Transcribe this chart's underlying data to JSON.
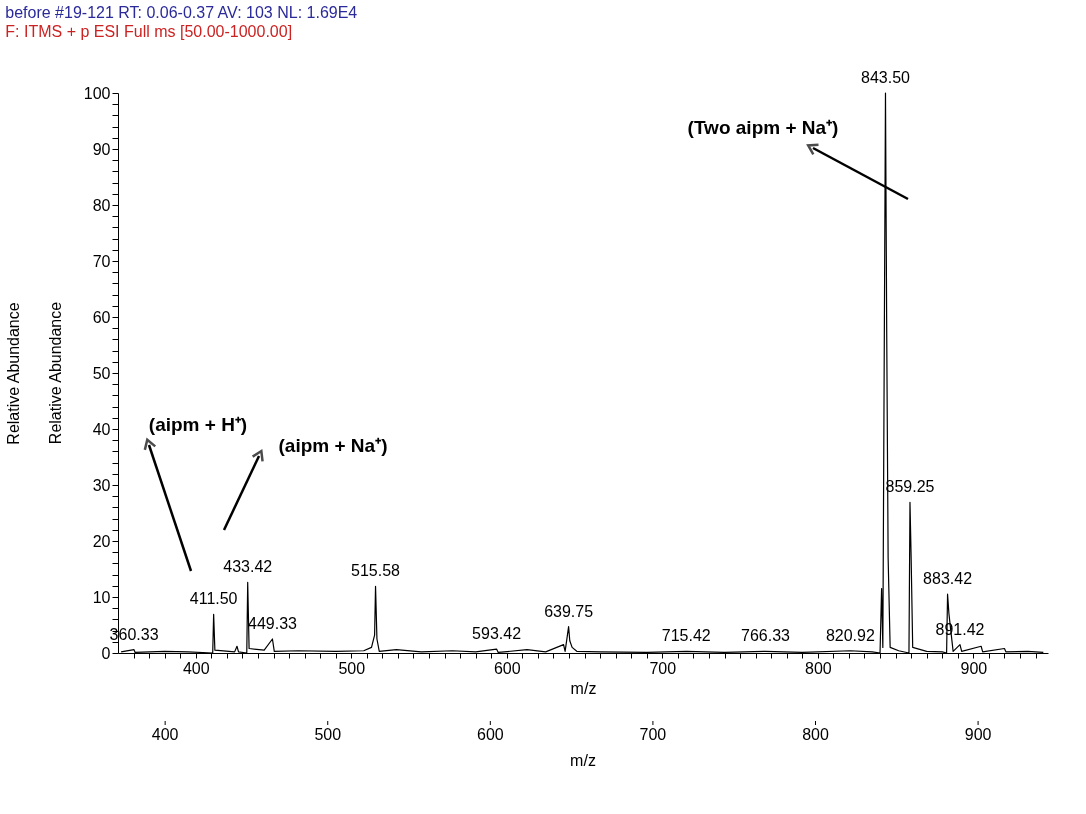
{
  "chart_data": {
    "type": "line",
    "title": "before #19-121   RT: 0.06-0.37   AV: 103   NL: 1.69E4",
    "subtitle": "F: ITMS + p ESI Full ms [50.00-1000.00]",
    "xlabel": "m/z",
    "x2label": "m/z",
    "ylabel": "Relative Abundance",
    "y2label": "Relative Abundance",
    "series": [
      {
        "color": "#000000",
        "x": [
          352,
          360.3,
          361,
          380,
          395,
          410.9,
          411.5,
          412.3,
          425,
          426.5,
          427.5,
          432.8,
          433.4,
          434.3,
          444,
          449.3,
          450.5,
          466,
          490,
          508,
          513,
          515,
          515.6,
          516.5,
          518,
          529,
          545,
          565,
          580,
          593.4,
          594.5,
          613,
          625,
          636.5,
          637.5,
          639.75,
          640.5,
          642,
          645,
          660,
          690,
          715.4,
          740,
          766.3,
          790,
          820.9,
          835,
          840,
          841,
          841.8,
          843.5,
          844.3,
          845.2,
          846.5,
          852,
          858.6,
          859.25,
          860,
          861,
          870,
          880,
          882.8,
          883.42,
          884.3,
          885.5,
          887,
          891.4,
          892.5,
          905,
          906,
          920,
          921,
          935,
          945
        ],
        "values": [
          0.2,
          0.6,
          0.1,
          0.3,
          0.2,
          0,
          6.9,
          0.5,
          0.2,
          1.2,
          0.2,
          0,
          12.6,
          0.8,
          0.5,
          2.5,
          0.3,
          0.4,
          0.3,
          0.4,
          1,
          3.2,
          11.9,
          2.5,
          0.3,
          0.6,
          0.2,
          0.4,
          0.2,
          0.7,
          0.1,
          0.6,
          0.2,
          1.5,
          0.3,
          4.7,
          2.2,
          1,
          0.3,
          0.2,
          0.1,
          0.3,
          0.1,
          0.3,
          0.1,
          0.4,
          0.2,
          0,
          11.5,
          1,
          100,
          57,
          17,
          1,
          0.4,
          0,
          26.9,
          17,
          1,
          0.3,
          0.2,
          0,
          10.5,
          7,
          4,
          0.3,
          1.5,
          0.3,
          1.2,
          0.2,
          0.8,
          0.2,
          0.3,
          0.1
        ]
      }
    ],
    "marker": "none",
    "line_style": "solid",
    "grid": false,
    "xlim": [
      350,
      948
    ],
    "ylim": [
      0,
      100
    ],
    "xticks": [
      {
        "value": 360,
        "label": null
      },
      {
        "value": 370,
        "label": null
      },
      {
        "value": 380,
        "label": null
      },
      {
        "value": 390,
        "label": null
      },
      400,
      {
        "value": 410,
        "label": null
      },
      {
        "value": 420,
        "label": null
      },
      {
        "value": 430,
        "label": null
      },
      {
        "value": 440,
        "label": null
      },
      {
        "value": 450,
        "label": null
      },
      {
        "value": 460,
        "label": null
      },
      {
        "value": 470,
        "label": null
      },
      {
        "value": 480,
        "label": null
      },
      {
        "value": 490,
        "label": null
      },
      500,
      {
        "value": 510,
        "label": null
      },
      {
        "value": 520,
        "label": null
      },
      {
        "value": 530,
        "label": null
      },
      {
        "value": 540,
        "label": null
      },
      {
        "value": 550,
        "label": null
      },
      {
        "value": 560,
        "label": null
      },
      {
        "value": 570,
        "label": null
      },
      {
        "value": 580,
        "label": null
      },
      {
        "value": 590,
        "label": null
      },
      600,
      {
        "value": 610,
        "label": null
      },
      {
        "value": 620,
        "label": null
      },
      {
        "value": 630,
        "label": null
      },
      {
        "value": 640,
        "label": null
      },
      {
        "value": 650,
        "label": null
      },
      {
        "value": 660,
        "label": null
      },
      {
        "value": 670,
        "label": null
      },
      {
        "value": 680,
        "label": null
      },
      {
        "value": 690,
        "label": null
      },
      700,
      {
        "value": 710,
        "label": null
      },
      {
        "value": 720,
        "label": null
      },
      {
        "value": 730,
        "label": null
      },
      {
        "value": 740,
        "label": null
      },
      {
        "value": 750,
        "label": null
      },
      {
        "value": 760,
        "label": null
      },
      {
        "value": 770,
        "label": null
      },
      {
        "value": 780,
        "label": null
      },
      {
        "value": 790,
        "label": null
      },
      800,
      {
        "value": 810,
        "label": null
      },
      {
        "value": 820,
        "label": null
      },
      {
        "value": 830,
        "label": null
      },
      {
        "value": 840,
        "label": null
      },
      {
        "value": 850,
        "label": null
      },
      {
        "value": 860,
        "label": null
      },
      {
        "value": 870,
        "label": null
      },
      {
        "value": 880,
        "label": null
      },
      {
        "value": 890,
        "label": null
      },
      900,
      {
        "value": 910,
        "label": null
      },
      {
        "value": 920,
        "label": null
      },
      {
        "value": 930,
        "label": null
      },
      {
        "value": 940,
        "label": null
      }
    ],
    "yticks": [
      0,
      {
        "value": 2,
        "label": null
      },
      {
        "value": 4,
        "label": null
      },
      {
        "value": 6,
        "label": null
      },
      {
        "value": 8,
        "label": null
      },
      10,
      {
        "value": 12,
        "label": null
      },
      {
        "value": 14,
        "label": null
      },
      {
        "value": 16,
        "label": null
      },
      {
        "value": 18,
        "label": null
      },
      20,
      {
        "value": 22,
        "label": null
      },
      {
        "value": 24,
        "label": null
      },
      {
        "value": 26,
        "label": null
      },
      {
        "value": 28,
        "label": null
      },
      30,
      {
        "value": 32,
        "label": null
      },
      {
        "value": 34,
        "label": null
      },
      {
        "value": 36,
        "label": null
      },
      {
        "value": 38,
        "label": null
      },
      40,
      {
        "value": 42,
        "label": null
      },
      {
        "value": 44,
        "label": null
      },
      {
        "value": 46,
        "label": null
      },
      {
        "value": 48,
        "label": null
      },
      50,
      {
        "value": 52,
        "label": null
      },
      {
        "value": 54,
        "label": null
      },
      {
        "value": 56,
        "label": null
      },
      {
        "value": 58,
        "label": null
      },
      60,
      {
        "value": 62,
        "label": null
      },
      {
        "value": 64,
        "label": null
      },
      {
        "value": 66,
        "label": null
      },
      {
        "value": 68,
        "label": null
      },
      70,
      {
        "value": 72,
        "label": null
      },
      {
        "value": 74,
        "label": null
      },
      {
        "value": 76,
        "label": null
      },
      {
        "value": 78,
        "label": null
      },
      80,
      {
        "value": 82,
        "label": null
      },
      {
        "value": 84,
        "label": null
      },
      {
        "value": 86,
        "label": null
      },
      {
        "value": 88,
        "label": null
      },
      90,
      {
        "value": 92,
        "label": null
      },
      {
        "value": 94,
        "label": null
      },
      {
        "value": 96,
        "label": null
      },
      {
        "value": 98,
        "label": null
      },
      100
    ],
    "x2lim": [
      371,
      943
    ],
    "x2ticks": [
      400,
      500,
      600,
      700,
      800,
      900
    ],
    "annotations": [
      {
        "text": "360.33",
        "x": 360.33,
        "y": 0.6
      },
      {
        "text": "411.50",
        "x": 411.5,
        "y": 6.9
      },
      {
        "text": "433.42",
        "x": 433.42,
        "y": 12.6
      },
      {
        "text": "449.33",
        "x": 449.33,
        "y": 2.5
      },
      {
        "text": "515.58",
        "x": 515.58,
        "y": 11.9
      },
      {
        "text": "593.42",
        "x": 593.42,
        "y": 0.7
      },
      {
        "text": "639.75",
        "x": 639.75,
        "y": 4.7
      },
      {
        "text": "715.42",
        "x": 715.42,
        "y": 0.3
      },
      {
        "text": "766.33",
        "x": 766.33,
        "y": 0.3
      },
      {
        "text": "820.92",
        "x": 820.92,
        "y": 0.4
      },
      {
        "text": "843.50",
        "x": 843.5,
        "y": 100
      },
      {
        "text": "859.25",
        "x": 859.25,
        "y": 26.9
      },
      {
        "text": "883.42",
        "x": 883.42,
        "y": 10.5
      },
      {
        "text": "891.42",
        "x": 891.42,
        "y": 1.5
      },
      "(aipm + H⁺)",
      "(aipm + Na⁺)",
      "(Two aipm + Na⁺)"
    ]
  }
}
